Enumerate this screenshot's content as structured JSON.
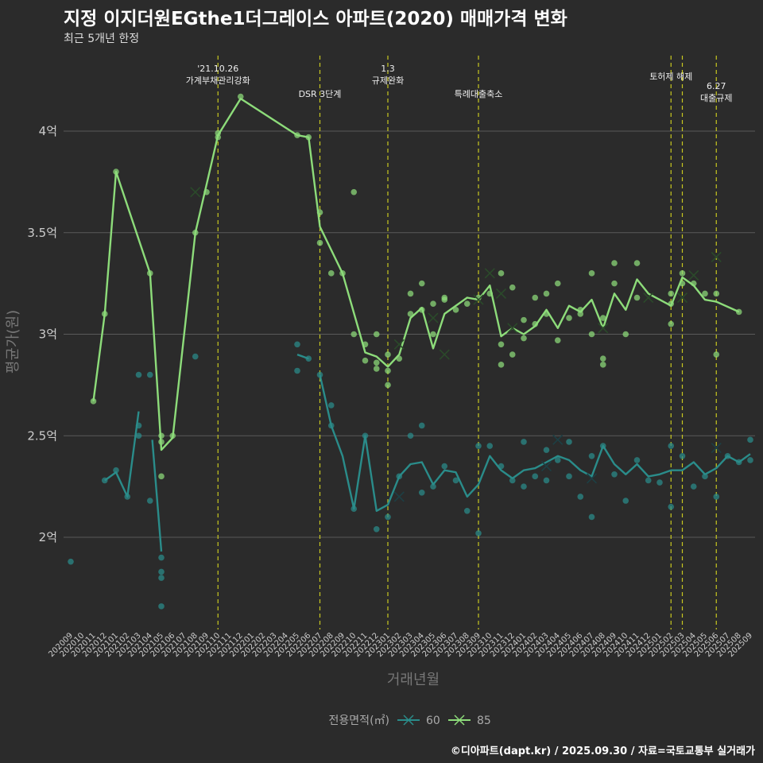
{
  "title": "지정 이지더원EGthe1더그레이스 아파트(2020) 매매가격 변화",
  "subtitle": "최근 5개년 한정",
  "footer": "©디아파트(dapt.kr) / 2025.09.30 / 자료=국토교통부 실거래가",
  "colors": {
    "s60": "#2a8c8a",
    "s85": "#8ddc7a",
    "vline": "#c8c820",
    "grid": "#5a5a5a"
  },
  "chart_data": {
    "type": "line",
    "xlabel": "거래년월",
    "ylabel": "평균가(원)",
    "ylim": [
      1.55,
      4.5
    ],
    "yticks": [
      {
        "v": 2,
        "label": "2억"
      },
      {
        "v": 2.5,
        "label": "2.5억"
      },
      {
        "v": 3,
        "label": "3억"
      },
      {
        "v": 3.5,
        "label": "3.5억"
      },
      {
        "v": 4,
        "label": "4억"
      }
    ],
    "months": [
      "202009",
      "202010",
      "202011",
      "202012",
      "202101",
      "202102",
      "202103",
      "202104",
      "202105",
      "202106",
      "202107",
      "202108",
      "202109",
      "202110",
      "202111",
      "202112",
      "202201",
      "202202",
      "202203",
      "202204",
      "202205",
      "202206",
      "202207",
      "202208",
      "202209",
      "202210",
      "202211",
      "202212",
      "202301",
      "202302",
      "202303",
      "202304",
      "202305",
      "202306",
      "202307",
      "202308",
      "202309",
      "202310",
      "202311",
      "202312",
      "202401",
      "202402",
      "202403",
      "202404",
      "202405",
      "202406",
      "202407",
      "202408",
      "202409",
      "202410",
      "202411",
      "202412",
      "202501",
      "202502",
      "202503",
      "202504",
      "202505",
      "202506",
      "202507",
      "202508",
      "202509"
    ],
    "legend_title": "전용면적(㎡)",
    "series": [
      {
        "name": "60",
        "lines": [
          [
            [
              3,
              2.28
            ],
            [
              4,
              2.32
            ],
            [
              5,
              2.2
            ],
            [
              6,
              2.62
            ]
          ],
          [
            [
              7.2,
              2.48
            ],
            [
              8,
              1.93
            ]
          ],
          [
            [
              20,
              2.9
            ],
            [
              21,
              2.88
            ]
          ],
          [
            [
              22,
              2.8
            ],
            [
              23,
              2.55
            ],
            [
              24,
              2.4
            ],
            [
              25,
              2.14
            ],
            [
              26,
              2.5
            ],
            [
              27,
              2.13
            ],
            [
              28,
              2.16
            ],
            [
              29,
              2.3
            ],
            [
              30,
              2.36
            ],
            [
              31,
              2.37
            ],
            [
              32,
              2.26
            ],
            [
              33,
              2.33
            ],
            [
              34,
              2.32
            ],
            [
              35,
              2.2
            ],
            [
              36,
              2.26
            ],
            [
              37,
              2.4
            ],
            [
              38,
              2.33
            ],
            [
              39,
              2.29
            ],
            [
              40,
              2.33
            ],
            [
              41,
              2.34
            ],
            [
              42,
              2.37
            ],
            [
              43,
              2.4
            ],
            [
              44,
              2.38
            ],
            [
              45,
              2.33
            ],
            [
              46,
              2.3
            ],
            [
              47,
              2.45
            ],
            [
              48,
              2.36
            ],
            [
              49,
              2.31
            ],
            [
              50,
              2.36
            ],
            [
              51,
              2.3
            ],
            [
              52,
              2.31
            ],
            [
              53,
              2.33
            ],
            [
              54,
              2.33
            ],
            [
              55,
              2.37
            ],
            [
              56,
              2.31
            ],
            [
              57,
              2.34
            ],
            [
              58,
              2.4
            ],
            [
              59,
              2.37
            ],
            [
              60,
              2.41
            ]
          ]
        ],
        "points": [
          [
            0,
            1.88
          ],
          [
            3,
            2.28
          ],
          [
            4,
            2.33
          ],
          [
            5,
            2.2
          ],
          [
            6,
            2.8
          ],
          [
            6,
            2.55
          ],
          [
            6,
            2.5
          ],
          [
            7,
            2.8
          ],
          [
            7,
            2.18
          ],
          [
            8,
            1.9
          ],
          [
            8,
            1.83
          ],
          [
            8,
            1.8
          ],
          [
            8,
            1.66
          ],
          [
            11,
            2.89
          ],
          [
            20,
            2.95
          ],
          [
            20,
            2.82
          ],
          [
            21,
            2.88
          ],
          [
            22,
            2.8
          ],
          [
            23,
            2.65
          ],
          [
            23,
            2.55
          ],
          [
            25,
            2.14
          ],
          [
            26,
            2.5
          ],
          [
            27,
            2.04
          ],
          [
            28,
            2.1
          ],
          [
            29,
            2.3
          ],
          [
            30,
            2.5
          ],
          [
            31,
            2.55
          ],
          [
            31,
            2.22
          ],
          [
            32,
            2.25
          ],
          [
            33,
            2.35
          ],
          [
            34,
            2.28
          ],
          [
            35,
            2.13
          ],
          [
            36,
            2.02
          ],
          [
            36,
            2.45
          ],
          [
            37,
            2.45
          ],
          [
            38,
            2.35
          ],
          [
            39,
            2.28
          ],
          [
            40,
            2.25
          ],
          [
            40,
            2.47
          ],
          [
            41,
            2.3
          ],
          [
            42,
            2.43
          ],
          [
            42,
            2.28
          ],
          [
            43,
            2.38
          ],
          [
            44,
            2.47
          ],
          [
            44,
            2.3
          ],
          [
            45,
            2.2
          ],
          [
            46,
            2.1
          ],
          [
            46,
            2.4
          ],
          [
            47,
            2.45
          ],
          [
            48,
            2.31
          ],
          [
            49,
            2.18
          ],
          [
            50,
            2.38
          ],
          [
            51,
            2.28
          ],
          [
            52,
            2.27
          ],
          [
            53,
            2.15
          ],
          [
            53,
            2.45
          ],
          [
            54,
            2.4
          ],
          [
            55,
            2.25
          ],
          [
            56,
            2.3
          ],
          [
            57,
            2.2
          ],
          [
            58,
            2.4
          ],
          [
            59,
            2.37
          ],
          [
            60,
            2.48
          ],
          [
            60,
            2.38
          ]
        ],
        "crosses": [
          [
            29,
            2.2
          ],
          [
            42,
            2.35
          ],
          [
            43,
            2.48
          ],
          [
            46,
            2.29
          ],
          [
            57,
            2.44
          ]
        ]
      },
      {
        "name": "85",
        "lines": [
          [
            [
              2,
              2.67
            ],
            [
              3,
              3.1
            ],
            [
              4,
              3.8
            ],
            [
              7,
              3.3
            ],
            [
              8,
              2.43
            ],
            [
              9,
              2.49
            ],
            [
              11,
              3.5
            ],
            [
              13,
              3.98
            ],
            [
              15,
              4.16
            ],
            [
              20,
              3.98
            ],
            [
              21,
              3.97
            ],
            [
              22,
              3.53
            ],
            [
              24,
              3.3
            ],
            [
              26,
              2.91
            ],
            [
              27,
              2.89
            ],
            [
              28,
              2.84
            ],
            [
              29,
              2.9
            ],
            [
              30,
              3.08
            ],
            [
              31,
              3.13
            ],
            [
              32,
              2.93
            ],
            [
              33,
              3.1
            ],
            [
              35,
              3.18
            ],
            [
              36,
              3.17
            ],
            [
              37,
              3.24
            ],
            [
              38,
              2.99
            ],
            [
              39,
              3.03
            ],
            [
              40,
              3.0
            ],
            [
              41,
              3.04
            ],
            [
              42,
              3.12
            ],
            [
              43,
              3.03
            ],
            [
              44,
              3.14
            ],
            [
              45,
              3.11
            ],
            [
              46,
              3.17
            ],
            [
              47,
              3.03
            ],
            [
              48,
              3.2
            ],
            [
              49,
              3.12
            ],
            [
              50,
              3.27
            ],
            [
              51,
              3.2
            ],
            [
              53,
              3.14
            ],
            [
              54,
              3.28
            ],
            [
              55,
              3.24
            ],
            [
              56,
              3.17
            ],
            [
              57,
              3.16
            ],
            [
              59,
              3.11
            ]
          ]
        ],
        "points": [
          [
            2,
            2.67
          ],
          [
            3,
            3.1
          ],
          [
            4,
            3.8
          ],
          [
            7,
            3.3
          ],
          [
            8,
            2.5
          ],
          [
            8,
            2.47
          ],
          [
            8,
            2.3
          ],
          [
            9,
            2.5
          ],
          [
            11,
            3.5
          ],
          [
            12,
            3.7
          ],
          [
            13,
            3.99
          ],
          [
            13,
            3.97
          ],
          [
            15,
            4.17
          ],
          [
            20,
            3.98
          ],
          [
            21,
            3.97
          ],
          [
            22,
            3.6
          ],
          [
            22,
            3.45
          ],
          [
            23,
            3.3
          ],
          [
            24,
            3.3
          ],
          [
            25,
            3.7
          ],
          [
            25,
            3.0
          ],
          [
            26,
            2.95
          ],
          [
            26,
            2.87
          ],
          [
            27,
            3.0
          ],
          [
            27,
            2.86
          ],
          [
            27,
            2.83
          ],
          [
            28,
            2.82
          ],
          [
            28,
            2.75
          ],
          [
            28,
            2.9
          ],
          [
            29,
            2.88
          ],
          [
            30,
            3.1
          ],
          [
            30,
            3.2
          ],
          [
            31,
            3.25
          ],
          [
            31,
            3.12
          ],
          [
            32,
            3.15
          ],
          [
            32,
            3.0
          ],
          [
            33,
            3.17
          ],
          [
            33,
            3.18
          ],
          [
            34,
            3.12
          ],
          [
            35,
            3.15
          ],
          [
            36,
            3.18
          ],
          [
            37,
            3.2
          ],
          [
            38,
            2.95
          ],
          [
            38,
            2.85
          ],
          [
            38,
            3.3
          ],
          [
            39,
            3.23
          ],
          [
            39,
            2.9
          ],
          [
            40,
            3.07
          ],
          [
            40,
            2.98
          ],
          [
            41,
            3.18
          ],
          [
            41,
            3.05
          ],
          [
            42,
            3.2
          ],
          [
            42,
            3.1
          ],
          [
            43,
            3.25
          ],
          [
            43,
            2.97
          ],
          [
            44,
            3.08
          ],
          [
            45,
            3.1
          ],
          [
            45,
            3.12
          ],
          [
            46,
            3.3
          ],
          [
            46,
            3.0
          ],
          [
            47,
            3.08
          ],
          [
            47,
            2.88
          ],
          [
            47,
            2.85
          ],
          [
            48,
            3.35
          ],
          [
            48,
            3.25
          ],
          [
            49,
            3.0
          ],
          [
            50,
            3.35
          ],
          [
            50,
            3.18
          ],
          [
            53,
            3.2
          ],
          [
            53,
            3.15
          ],
          [
            53,
            3.05
          ],
          [
            54,
            3.3
          ],
          [
            54,
            3.25
          ],
          [
            55,
            3.25
          ],
          [
            56,
            3.2
          ],
          [
            57,
            3.2
          ],
          [
            57,
            2.9
          ],
          [
            59,
            3.11
          ]
        ],
        "crosses": [
          [
            11,
            3.7
          ],
          [
            29,
            2.95
          ],
          [
            32,
            3.08
          ],
          [
            33,
            2.9
          ],
          [
            37,
            3.3
          ],
          [
            36,
            3.17
          ],
          [
            38,
            3.2
          ],
          [
            39,
            3.03
          ],
          [
            47,
            3.03
          ],
          [
            51,
            3.18
          ],
          [
            54,
            3.18
          ],
          [
            55,
            3.29
          ],
          [
            57,
            3.38
          ]
        ]
      }
    ],
    "vlines": [
      {
        "x": 13,
        "label_lines": [
          "'21.10.26",
          "가계부채관리강화"
        ],
        "top": 90
      },
      {
        "x": 22,
        "label_lines": [
          "DSR 3단계"
        ],
        "top": 122
      },
      {
        "x": 28,
        "label_lines": [
          "1.3",
          "규제완화"
        ],
        "top": 90
      },
      {
        "x": 36,
        "label_lines": [
          "특례대출축소"
        ],
        "top": 122
      },
      {
        "x": 53,
        "label_lines": [
          "토허제 해제"
        ],
        "top": 100
      },
      {
        "x": 54,
        "label_lines": [],
        "top": 0
      },
      {
        "x": 57,
        "label_lines": [
          "6.27",
          "대출규제"
        ],
        "top": 112
      }
    ]
  }
}
